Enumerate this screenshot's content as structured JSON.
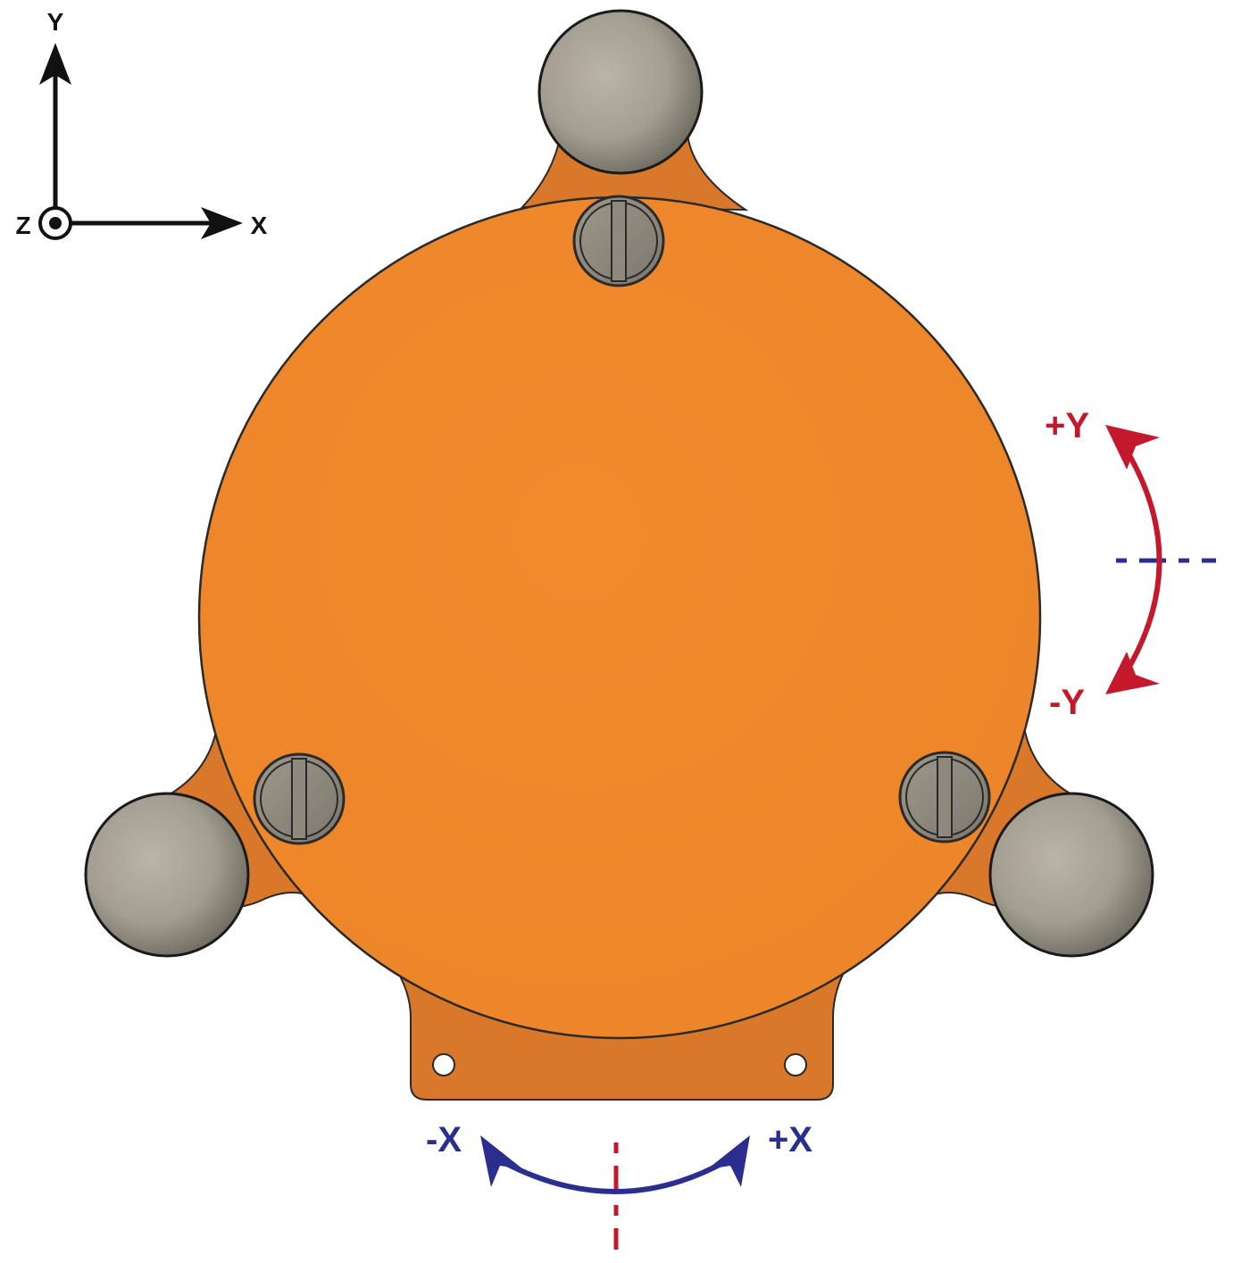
{
  "axes_icon": {
    "y_label": "Y",
    "x_label": "X",
    "z_label": "Z"
  },
  "rotation_y": {
    "plus_label": "+Y",
    "minus_label": "-Y"
  },
  "rotation_x": {
    "minus_label": "-X",
    "plus_label": "+X"
  },
  "colors": {
    "plate": "#F08A2E",
    "plate_edge": "#C96A1E",
    "outline": "#2a2a2a",
    "ball": "#A8A396",
    "red_arrow": "#C4192C",
    "blue_arrow": "#2A2F8F",
    "axis_black": "#111111"
  }
}
